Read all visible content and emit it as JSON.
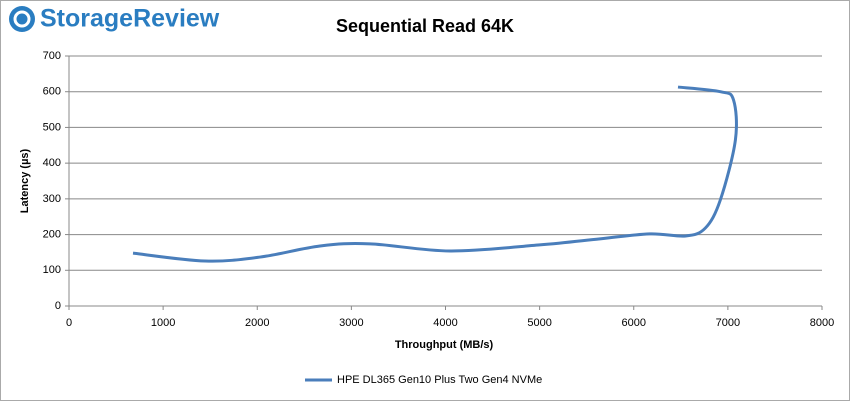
{
  "logo": "StorageReview",
  "chart_data": {
    "type": "line",
    "title": "Sequential Read 64K",
    "x_label": "Throughput (MB/s)",
    "y_label": "Latency (µs)",
    "series": [
      {
        "name": "HPE DL365 Gen10 Plus Two Gen4 NVMe",
        "color": "#4a7ebb",
        "x": [
          680,
          1445,
          2030,
          2667,
          3200,
          4050,
          5000,
          5640,
          6170,
          6550,
          6760,
          6920,
          7080,
          7060,
          6920,
          6470
        ],
        "values": [
          148,
          126,
          137,
          168,
          174,
          154,
          171,
          188,
          202,
          196,
          218,
          297,
          465,
          577,
          600,
          613
        ]
      }
    ],
    "xlim": [
      0,
      8000
    ],
    "xticks": [
      0,
      1000,
      2000,
      3000,
      4000,
      5000,
      6000,
      7000,
      8000
    ],
    "ylim": [
      0,
      700
    ],
    "yticks": [
      0,
      100,
      200,
      300,
      400,
      500,
      600,
      700
    ],
    "grid": true,
    "legend": "bottom"
  }
}
